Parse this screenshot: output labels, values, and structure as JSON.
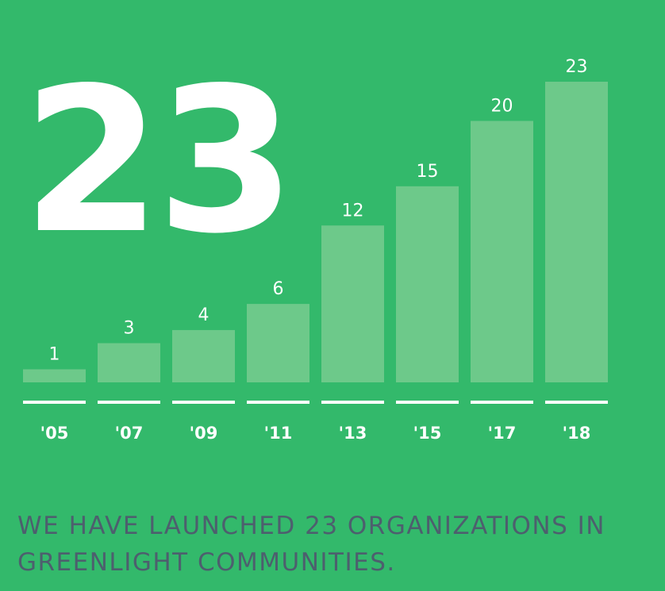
{
  "headline_number": "23",
  "caption": "WE HAVE LAUNCHED 23 ORGANIZATIONS IN GREENLIGHT COMMUNITIES.",
  "colors": {
    "background": "#33b96b",
    "bar": "#6dc98a",
    "underline": "#ffffff",
    "label_text": "#ffffff",
    "caption_text": "#4d5f6e"
  },
  "chart_data": {
    "type": "bar",
    "title": "",
    "xlabel": "",
    "ylabel": "",
    "categories": [
      "'05",
      "'07",
      "'09",
      "'11",
      "'13",
      "'15",
      "'17",
      "'18"
    ],
    "values": [
      1,
      3,
      4,
      6,
      12,
      15,
      20,
      23
    ],
    "ylim": [
      0,
      23
    ],
    "grid": false,
    "legend": "none",
    "data_labels": true
  }
}
